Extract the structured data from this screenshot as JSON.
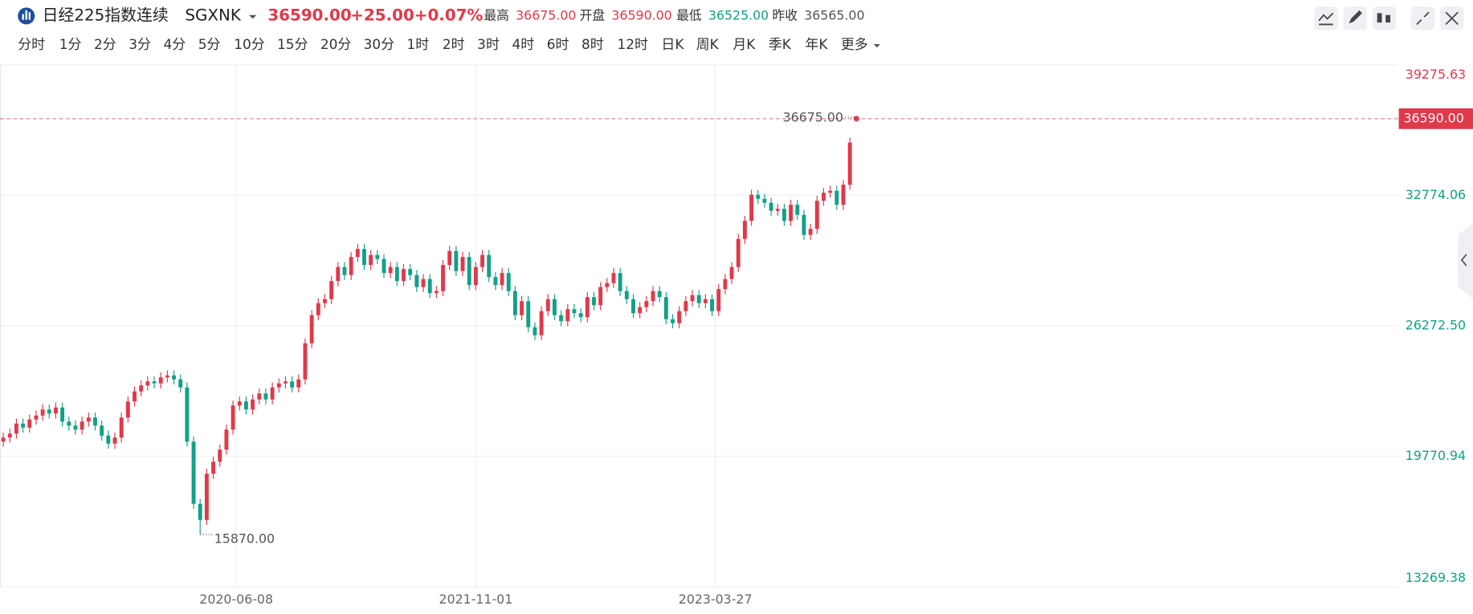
{
  "header": {
    "title": "日经225指数连续",
    "code": "SGXNK",
    "price": "36590.00",
    "change": "+25.00",
    "change_pct": "+0.07%",
    "stats": [
      {
        "label": "最高",
        "value": "36675.00"
      },
      {
        "label": "开盘",
        "value": "36590.00"
      },
      {
        "label": "最低",
        "value": "36525.00"
      },
      {
        "label": "昨收",
        "value": "36565.00"
      }
    ]
  },
  "intervals": [
    "分时",
    "1分",
    "2分",
    "3分",
    "4分",
    "5分",
    "10分",
    "15分",
    "20分",
    "30分",
    "1时",
    "2时",
    "3时",
    "4时",
    "6时",
    "8时",
    "12时",
    "日K",
    "周K",
    "月K",
    "季K",
    "年K",
    "更多"
  ],
  "active_interval": 18,
  "chart_data": {
    "type": "candlestick",
    "grid": true,
    "up_color": "#e0394a",
    "down_color": "#12a186",
    "ylim": [
      13269.38,
      39275.63
    ],
    "yticks": [
      {
        "value": 13269.38,
        "label": "13269.38"
      },
      {
        "value": 19770.94,
        "label": "19770.94"
      },
      {
        "value": 26272.5,
        "label": "26272.50"
      },
      {
        "value": 32774.06,
        "label": "32774.06"
      },
      {
        "value": 39275.63,
        "label": "39275.63"
      }
    ],
    "xlim": [
      -0.5,
      212.5
    ],
    "xticks": [
      {
        "value": 35.5,
        "label": "2020-06-08"
      },
      {
        "value": 72,
        "label": "2021-11-01"
      },
      {
        "value": 108.5,
        "label": "2023-03-27"
      }
    ],
    "last_price": {
      "value": 36590,
      "label": "36590.00"
    },
    "high_label": {
      "value": 36675,
      "label": "36675.00"
    },
    "low_label": {
      "value": 15870,
      "label": "15870.00"
    },
    "open": [
      20500,
      20700,
      20900,
      21400,
      21200,
      21600,
      21800,
      22100,
      21900,
      22200,
      21500,
      21300,
      21100,
      21500,
      21700,
      21300,
      20800,
      20400,
      20700,
      21700,
      22500,
      23000,
      23300,
      23500,
      23400,
      23700,
      23800,
      23600,
      23200,
      20500,
      17400,
      16600,
      18900,
      19500,
      20100,
      21100,
      22300,
      22500,
      22100,
      22600,
      22900,
      22600,
      23200,
      23400,
      23500,
      23200,
      23600,
      25400,
      26800,
      27400,
      27600,
      28500,
      29200,
      28800,
      29700,
      30100,
      29300,
      29800,
      29600,
      28900,
      29200,
      28500,
      29100,
      28800,
      28200,
      28600,
      27900,
      28000,
      29300,
      30000,
      29000,
      29700,
      28300,
      29200,
      29800,
      28700,
      28300,
      28900,
      28000,
      26800,
      27500,
      26200,
      25800,
      27000,
      27600,
      26800,
      26500,
      27100,
      26900,
      26700,
      27700,
      27300,
      28200,
      28400,
      28900,
      28000,
      27600,
      26900,
      27200,
      27500,
      28000,
      27700,
      26600,
      26400,
      27000,
      27500,
      27800,
      27400,
      27600,
      27000,
      28100,
      28600,
      29200,
      30600,
      31500,
      32800,
      32600,
      32400,
      32000,
      32100,
      31500,
      32300,
      31800,
      30800,
      31100,
      32500,
      32900,
      33000,
      32300,
      33300,
      36590
    ],
    "high": [
      20950,
      21150,
      21650,
      21650,
      21850,
      22050,
      22350,
      22350,
      22450,
      22450,
      21750,
      21550,
      21750,
      21950,
      21950,
      21550,
      21050,
      20950,
      21950,
      22750,
      23250,
      23550,
      23750,
      23750,
      23950,
      24050,
      24050,
      23850,
      23450,
      20750,
      17650,
      19150,
      19750,
      20350,
      21350,
      22550,
      22750,
      22750,
      22850,
      23150,
      23150,
      23450,
      23650,
      23750,
      23750,
      23850,
      25650,
      27050,
      27650,
      27850,
      28750,
      29450,
      29450,
      29950,
      30350,
      30350,
      30050,
      30050,
      29850,
      29450,
      29450,
      29350,
      29350,
      29050,
      28850,
      28850,
      28250,
      29550,
      30250,
      30250,
      29950,
      29950,
      29450,
      30050,
      30050,
      28950,
      29150,
      29150,
      28250,
      27750,
      27750,
      26450,
      27250,
      27850,
      27850,
      27050,
      27350,
      27350,
      27150,
      27950,
      27950,
      28450,
      28650,
      29150,
      29150,
      28250,
      27850,
      27450,
      27750,
      28250,
      28250,
      27950,
      26850,
      27250,
      27750,
      28050,
      28050,
      27850,
      27850,
      28350,
      28850,
      29450,
      30850,
      31750,
      33050,
      33050,
      32850,
      32650,
      32350,
      32350,
      32550,
      32550,
      32050,
      31350,
      32750,
      33150,
      33250,
      33250,
      33550,
      35650,
      36675
    ],
    "low": [
      20250,
      20450,
      20650,
      20950,
      20950,
      21350,
      21550,
      21650,
      21650,
      21250,
      21050,
      20850,
      20850,
      21250,
      21050,
      20550,
      20150,
      20150,
      20450,
      21450,
      22250,
      22750,
      23050,
      23150,
      23150,
      23450,
      23350,
      22950,
      20250,
      17150,
      15870,
      16350,
      18650,
      19250,
      19850,
      20850,
      22050,
      21850,
      21850,
      22350,
      22350,
      22350,
      22950,
      23150,
      22950,
      22950,
      23350,
      25150,
      26550,
      27150,
      27350,
      28250,
      28550,
      28550,
      29450,
      29050,
      29050,
      29350,
      28650,
      28650,
      28250,
      28250,
      28550,
      27950,
      27950,
      27650,
      27650,
      27750,
      29050,
      28750,
      28750,
      28050,
      28050,
      28950,
      28450,
      28050,
      28050,
      27750,
      26550,
      26550,
      25950,
      25550,
      25550,
      26750,
      26550,
      26250,
      26250,
      26650,
      26450,
      26450,
      27050,
      27050,
      27950,
      28150,
      27750,
      27350,
      26650,
      26650,
      26950,
      27250,
      27450,
      26350,
      26150,
      26150,
      26750,
      27250,
      27150,
      27150,
      26750,
      26750,
      27850,
      28350,
      28950,
      30350,
      31250,
      32350,
      32150,
      31750,
      31750,
      31250,
      31250,
      31550,
      30550,
      30550,
      30850,
      32250,
      32650,
      32050,
      32050,
      33050,
      36525
    ],
    "close": [
      20700,
      20900,
      21400,
      21200,
      21600,
      21800,
      22100,
      21900,
      22200,
      21500,
      21300,
      21100,
      21500,
      21700,
      21300,
      20800,
      20400,
      20700,
      21700,
      22500,
      23000,
      23300,
      23500,
      23400,
      23700,
      23800,
      23600,
      23200,
      20500,
      17400,
      16600,
      18900,
      19500,
      20100,
      21100,
      22300,
      22500,
      22100,
      22600,
      22900,
      22600,
      23200,
      23400,
      23500,
      23200,
      23600,
      25400,
      26800,
      27400,
      27600,
      28500,
      29200,
      28800,
      29700,
      30100,
      29300,
      29800,
      29600,
      28900,
      29200,
      28500,
      29100,
      28800,
      28200,
      28600,
      27900,
      28000,
      29300,
      30000,
      29000,
      29700,
      28300,
      29200,
      29800,
      28700,
      28300,
      28900,
      28000,
      26800,
      27500,
      26200,
      25800,
      27000,
      27600,
      26800,
      26500,
      27100,
      26900,
      26700,
      27700,
      27300,
      28200,
      28400,
      28900,
      28000,
      27600,
      26900,
      27200,
      27500,
      28000,
      27700,
      26600,
      26400,
      27000,
      27500,
      27800,
      27400,
      27600,
      27000,
      28100,
      28600,
      29200,
      30600,
      31500,
      32800,
      32600,
      32400,
      32000,
      32100,
      31500,
      32300,
      31800,
      30800,
      31100,
      32500,
      32900,
      33000,
      32300,
      33300,
      35400,
      36590
    ]
  }
}
